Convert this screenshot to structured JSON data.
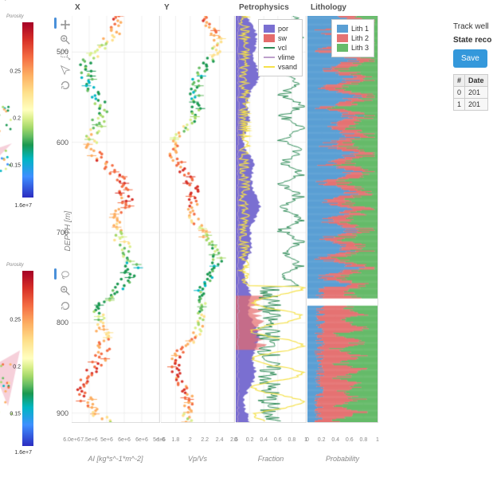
{
  "colorbar": {
    "label": "Porosity",
    "ticks": [
      {
        "v": "0.25",
        "pct": 28
      },
      {
        "v": "0.2",
        "pct": 55
      },
      {
        "v": "0.15",
        "pct": 82
      }
    ]
  },
  "minichart_xaxis": {
    "max_label": "1.6e+7",
    "mid_label": "+7"
  },
  "depth": {
    "label": "DEPTH [m]",
    "min": 460,
    "max": 910,
    "ticks": [
      500,
      600,
      700,
      800,
      900
    ]
  },
  "tracks": {
    "x": {
      "title": "X",
      "width": 110,
      "xlabel": "AI [kg*s^-1*m^-2]",
      "xticks": [
        "6.0e+6",
        "7.5e+6",
        "5e+6",
        "6e+6",
        "6e+6",
        "5e+6"
      ],
      "xmin": 5500000.0,
      "xmax": 9500000.0
    },
    "y": {
      "title": "Y",
      "width": 92,
      "xlabel": "Vp/Vs",
      "xticks": [
        "1.6",
        "1.8",
        "2",
        "2.2",
        "2.4",
        "2.6"
      ],
      "xmin": 1.5,
      "xmax": 2.65
    },
    "petro": {
      "title": "Petrophysics",
      "width": 88,
      "xlabel": "Fraction",
      "xticks": [
        "0",
        "0.2",
        "0.4",
        "0.6",
        "0.8",
        "1"
      ],
      "series": [
        {
          "name": "por",
          "color": "#7a6fd1",
          "type": "fill"
        },
        {
          "name": "sw",
          "color": "#e56b6b",
          "type": "fill"
        },
        {
          "name": "vcl",
          "color": "#2e8b57",
          "type": "line"
        },
        {
          "name": "vlime",
          "color": "#bda0cb",
          "type": "line"
        },
        {
          "name": "vsand",
          "color": "#f5e14a",
          "type": "line"
        }
      ]
    },
    "lith": {
      "title": "Lithology",
      "width": 88,
      "xlabel": "Probability",
      "xticks": [
        "0",
        "0.2",
        "0.4",
        "0.6",
        "0.8",
        "1"
      ],
      "classes": [
        {
          "name": "Lith 1",
          "color": "#5a9fd4"
        },
        {
          "name": "Lith 2",
          "color": "#e57373"
        },
        {
          "name": "Lith 3",
          "color": "#66bb6a"
        }
      ]
    }
  },
  "right": {
    "track_label": "Track well",
    "state_label": "State reco",
    "save": "Save",
    "table": {
      "cols": [
        "#",
        "Date"
      ],
      "rows": [
        [
          "0",
          "201"
        ],
        [
          "1",
          "201"
        ]
      ]
    }
  },
  "scatter_seed": 7
}
